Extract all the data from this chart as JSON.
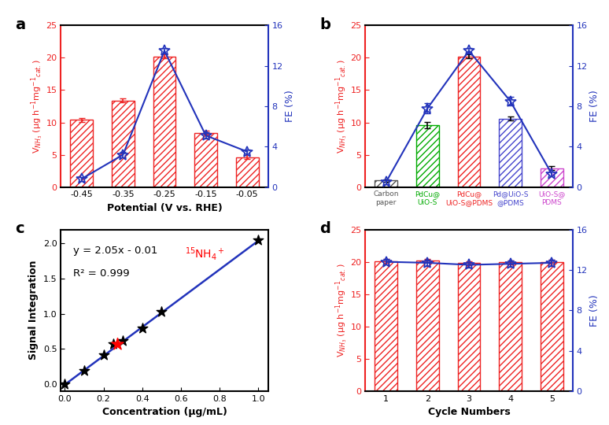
{
  "panel_a": {
    "potentials": [
      -0.45,
      -0.35,
      -0.25,
      -0.15,
      -0.05
    ],
    "vnh3": [
      10.4,
      13.4,
      20.2,
      8.4,
      4.6
    ],
    "vnh3_err": [
      0.3,
      0.3,
      0.3,
      0.3,
      0.3
    ],
    "fe": [
      0.8,
      3.2,
      13.5,
      5.1,
      3.5
    ],
    "fe_err": [
      0.2,
      0.3,
      0.3,
      0.3,
      0.2
    ],
    "ylabel_left": "V$_{NH_3}$ (μg h$^{-1}$mg$^{-1}$$_{cat.}$)",
    "ylabel_right": "FE (%)",
    "xlabel": "Potential (V vs. RHE)",
    "ylim_left": [
      0,
      25
    ],
    "ylim_right": [
      0,
      16
    ],
    "yticks_left": [
      0,
      5,
      10,
      15,
      20,
      25
    ],
    "yticks_right": [
      0,
      4,
      8,
      12,
      16
    ],
    "label": "a"
  },
  "panel_b": {
    "categories": [
      "Carbon\npaper",
      "PdCu@\nUiO-S",
      "PdCu@\nUiO-S@PDMS",
      "Pd@UiO-S\n@PDMS",
      "UiO-S@\nPDMS"
    ],
    "vnh3": [
      1.0,
      9.6,
      20.2,
      10.6,
      2.9
    ],
    "vnh3_err": [
      0.2,
      0.5,
      0.3,
      0.3,
      0.3
    ],
    "fe": [
      0.5,
      7.8,
      13.5,
      8.5,
      1.3
    ],
    "fe_err": [
      0.2,
      0.5,
      0.3,
      0.4,
      0.2
    ],
    "bar_colors": [
      "#555555",
      "#00aa00",
      "#ee2222",
      "#4444cc",
      "#cc44cc"
    ],
    "ylabel_left": "V$_{NH_3}$ (μg h$^{-1}$mg$^{-1}$$_{cat.}$)",
    "ylabel_right": "FE (%)",
    "ylim_left": [
      0,
      25
    ],
    "ylim_right": [
      0,
      16
    ],
    "yticks_left": [
      0,
      5,
      10,
      15,
      20,
      25
    ],
    "yticks_right": [
      0,
      4,
      8,
      12,
      16
    ],
    "label": "b"
  },
  "panel_c": {
    "conc": [
      0.0,
      0.1,
      0.2,
      0.25,
      0.3,
      0.4,
      0.5,
      1.0
    ],
    "signal": [
      0.0,
      0.19,
      0.41,
      0.57,
      0.61,
      0.8,
      1.03,
      2.05
    ],
    "red_point_conc": 0.27,
    "red_point_signal": 0.565,
    "equation": "y = 2.05x - 0.01",
    "r2": "R² = 0.999",
    "annotation": "$^{15}$NH$_4$$^+$",
    "xlabel": "Concentration (μg/mL)",
    "ylabel": "Signal Integration",
    "xlim": [
      -0.02,
      1.05
    ],
    "ylim": [
      -0.1,
      2.2
    ],
    "xticks": [
      0.0,
      0.2,
      0.4,
      0.6,
      0.8,
      1.0
    ],
    "yticks": [
      0.0,
      0.5,
      1.0,
      1.5,
      2.0
    ],
    "label": "c"
  },
  "panel_d": {
    "cycles": [
      1,
      2,
      3,
      4,
      5
    ],
    "vnh3": [
      20.1,
      20.2,
      19.8,
      19.9,
      20.0
    ],
    "vnh3_err": [
      0.3,
      0.3,
      0.3,
      0.3,
      0.3
    ],
    "fe": [
      12.8,
      12.7,
      12.5,
      12.6,
      12.7
    ],
    "fe_err": [
      0.3,
      0.3,
      0.3,
      0.3,
      0.3
    ],
    "ylabel_left": "V$_{NH_3}$ (μg h$^{-1}$mg$^{-1}$$_{cat.}$)",
    "ylabel_right": "FE (%)",
    "xlabel": "Cycle Numbers",
    "ylim_left": [
      0,
      25
    ],
    "ylim_right": [
      0,
      16
    ],
    "yticks_left": [
      0,
      5,
      10,
      15,
      20,
      25
    ],
    "yticks_right": [
      0,
      4,
      8,
      12,
      16
    ],
    "label": "d"
  },
  "bar_color_red": "#ee2222",
  "line_color_blue": "#2233bb",
  "hatch_pattern": "////",
  "bar_facecolor": "white"
}
